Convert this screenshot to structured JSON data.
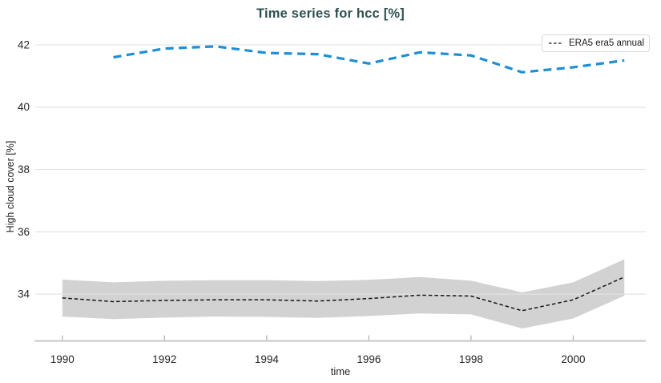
{
  "chart_data": {
    "type": "line",
    "title": "Time series for hcc [%]",
    "xlabel": "time",
    "ylabel": "High cloud cover [%]",
    "xlim": [
      1989.47,
      2001.42
    ],
    "ylim": [
      32.5,
      42.41
    ],
    "x_ticks": [
      "1990",
      "1992",
      "1994",
      "1996",
      "1998",
      "2000"
    ],
    "y_ticks": [
      "34",
      "36",
      "38",
      "40",
      "42"
    ],
    "grid": true,
    "legend": {
      "position": "top-right",
      "entries": [
        {
          "label": "ERA5 era5 annual",
          "style": "dashed",
          "color": "#141414"
        }
      ]
    },
    "colors": {
      "title": "#2e4f4f",
      "band": "#d2d2d2",
      "grid": "#e3e3e3",
      "axis": "#c6c6c6",
      "tick": "#b5b5b5",
      "tick_label": "#262626",
      "blue_line": "#1e8fd5",
      "black_line": "#141414"
    },
    "series": [
      {
        "id": "era5-annual-series",
        "label": "ERA5 era5 annual",
        "color": "#141414",
        "style": "dashed",
        "x": [
          1990,
          1991,
          1992,
          1993,
          1994,
          1995,
          1996,
          1997,
          1998,
          1999,
          2000,
          2001
        ],
        "y": [
          33.88,
          33.76,
          33.8,
          33.82,
          33.82,
          33.78,
          33.86,
          33.97,
          33.94,
          33.47,
          33.82,
          34.55
        ],
        "band_upper": [
          34.47,
          34.38,
          34.43,
          34.45,
          34.45,
          34.42,
          34.46,
          34.55,
          34.43,
          34.06,
          34.38,
          35.12
        ],
        "band_lower": [
          33.28,
          33.2,
          33.25,
          33.28,
          33.27,
          33.24,
          33.3,
          33.38,
          33.35,
          32.9,
          33.22,
          33.95
        ],
        "band_color": "#d2d2d2"
      },
      {
        "id": "blue-dashed-series",
        "label": "",
        "color": "#1e8fd5",
        "style": "dashed",
        "x": [
          1991,
          1992,
          1993,
          1994,
          1995,
          1996,
          1997,
          1998,
          1999,
          2000,
          2001
        ],
        "y": [
          41.6,
          41.88,
          41.95,
          41.74,
          41.7,
          41.4,
          41.76,
          41.66,
          41.12,
          41.28,
          41.5
        ]
      }
    ]
  }
}
